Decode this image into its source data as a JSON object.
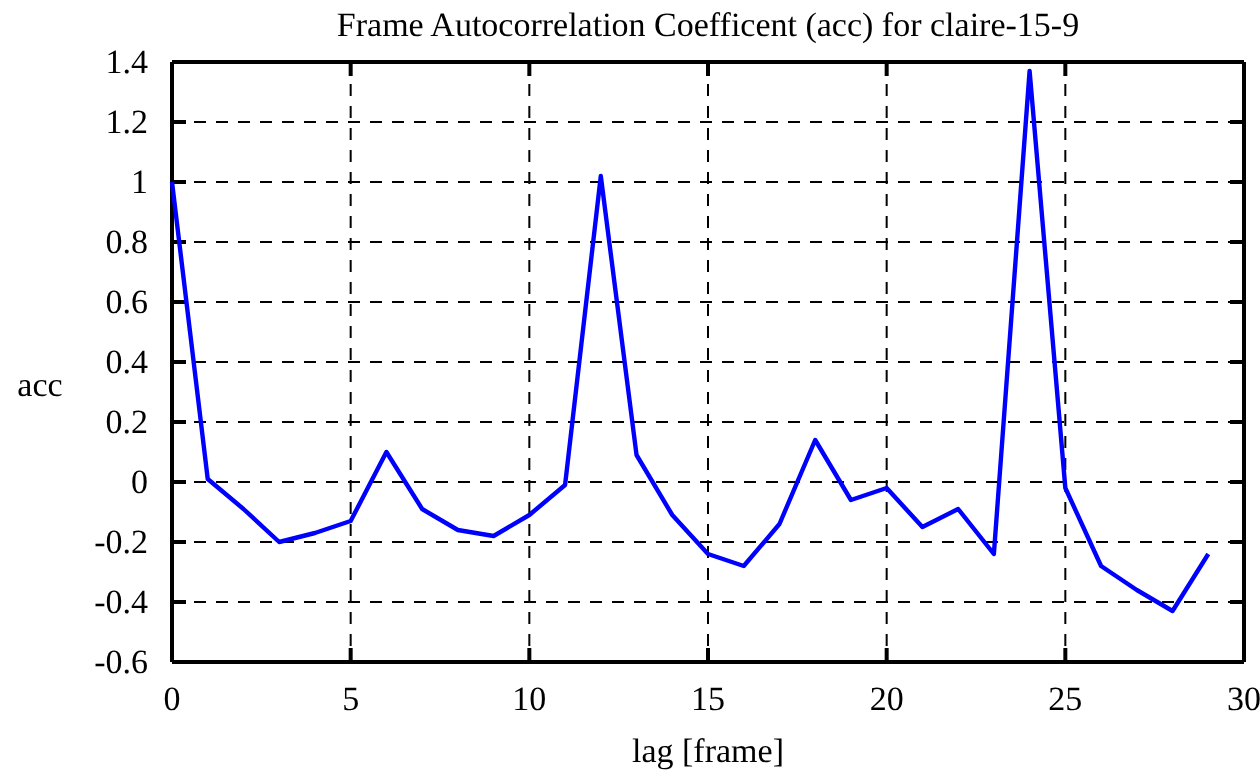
{
  "chart_data": {
    "type": "line",
    "title": "Frame Autocorrelation Coefficent (acc) for claire-15-9",
    "xlabel": "lag [frame]",
    "ylabel": "acc",
    "x": [
      0,
      1,
      2,
      3,
      4,
      5,
      6,
      7,
      8,
      9,
      10,
      11,
      12,
      13,
      14,
      15,
      16,
      17,
      18,
      19,
      20,
      21,
      22,
      23,
      24,
      25,
      26,
      27,
      28,
      29
    ],
    "series": [
      {
        "color": "#0000ff",
        "values": [
          1.0,
          0.01,
          -0.09,
          -0.2,
          -0.17,
          -0.13,
          0.1,
          -0.09,
          -0.16,
          -0.18,
          -0.11,
          -0.01,
          1.02,
          0.09,
          -0.11,
          -0.24,
          -0.28,
          -0.14,
          0.14,
          -0.06,
          -0.02,
          -0.15,
          -0.09,
          -0.24,
          1.37,
          -0.02,
          -0.28,
          -0.36,
          -0.43,
          -0.24
        ]
      }
    ],
    "xlim": [
      0,
      30
    ],
    "xticks": [
      0,
      5,
      10,
      15,
      20,
      25,
      30
    ],
    "ylim": [
      -0.6,
      1.4
    ],
    "yticks": [
      -0.6,
      -0.4,
      -0.2,
      0,
      0.2,
      0.4,
      0.6,
      0.8,
      1,
      1.2,
      1.4
    ],
    "grid": true,
    "marker": "none",
    "line_style": "solid"
  }
}
